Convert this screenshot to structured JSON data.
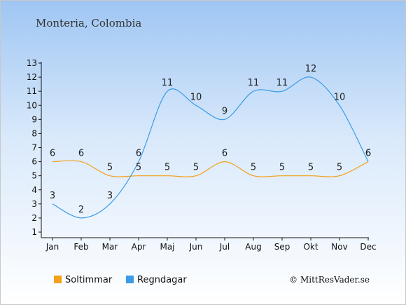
{
  "chart_data": {
    "type": "line",
    "title": "Monteria, Colombia",
    "categories": [
      "Jan",
      "Feb",
      "Mar",
      "Apr",
      "Maj",
      "Jun",
      "Jul",
      "Aug",
      "Sep",
      "Okt",
      "Nov",
      "Dec"
    ],
    "ylim": [
      1,
      13
    ],
    "yticks": [
      1,
      2,
      3,
      4,
      5,
      6,
      7,
      8,
      9,
      10,
      11,
      12,
      13
    ],
    "grid": false,
    "legend_position": "bottom-left",
    "series": [
      {
        "name": "Soltimmar",
        "color": "#f4a018",
        "values": [
          6,
          6,
          5,
          5,
          5,
          5,
          6,
          5,
          5,
          5,
          5,
          6
        ]
      },
      {
        "name": "Regndagar",
        "color": "#3a9be8",
        "values": [
          3,
          2,
          3,
          6,
          11,
          10,
          9,
          11,
          11,
          12,
          10,
          6
        ]
      }
    ]
  },
  "copyright": "© MittResVader.se"
}
